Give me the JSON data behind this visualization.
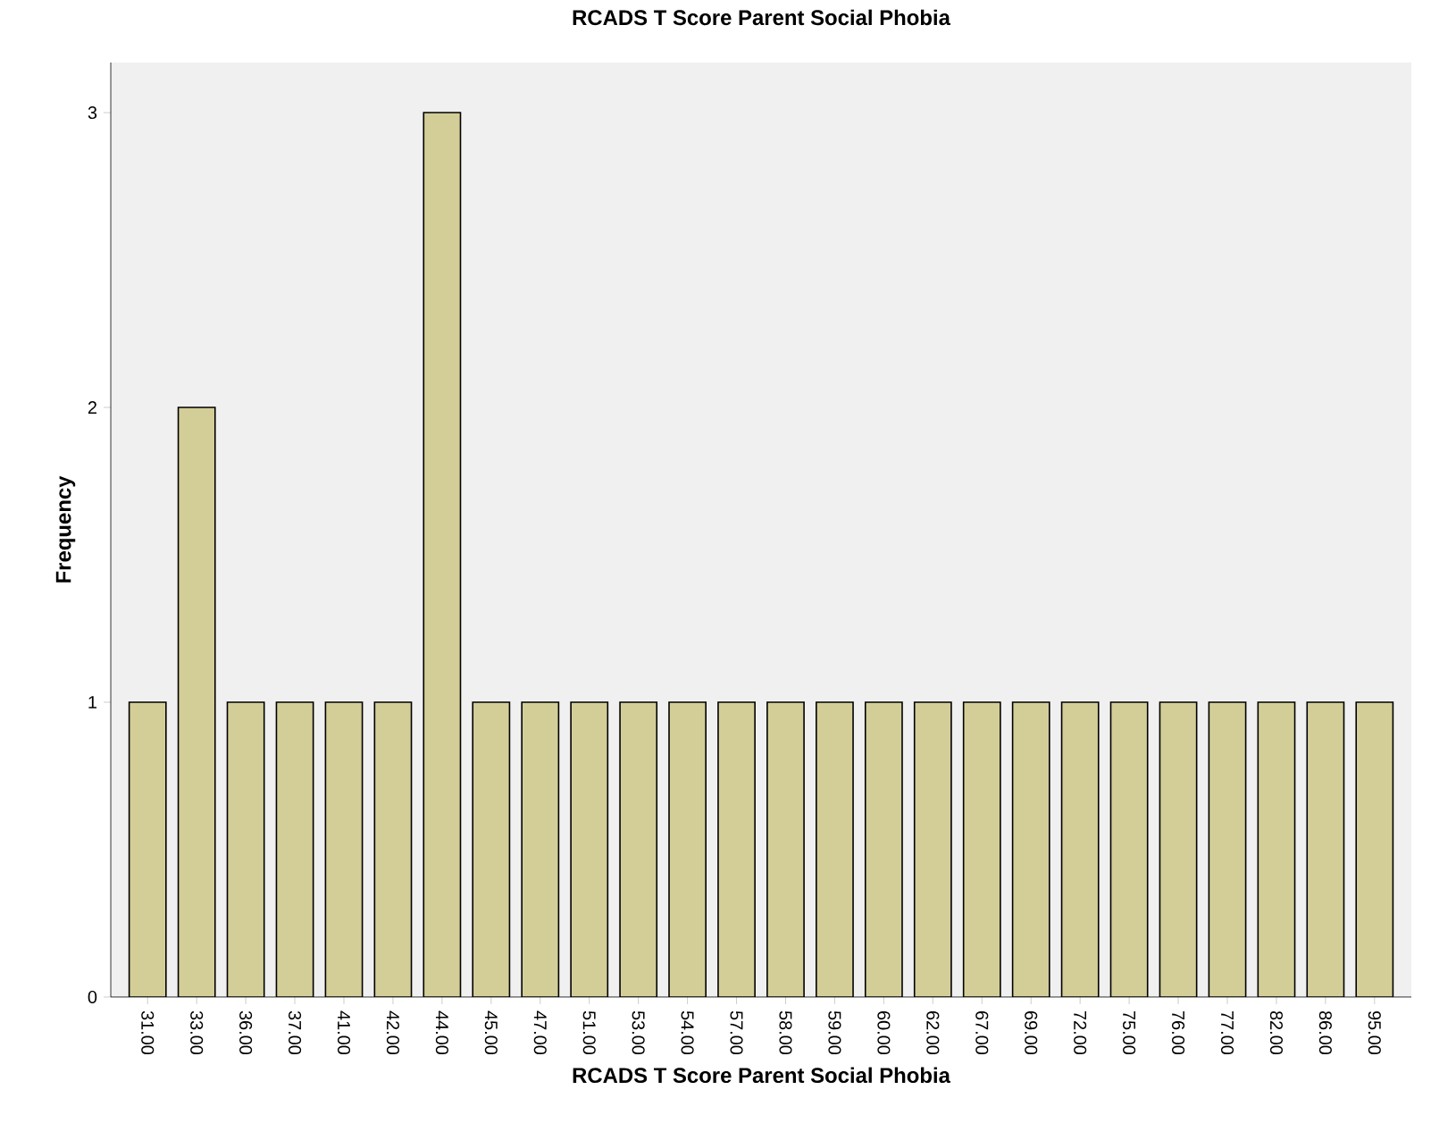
{
  "chart_data": {
    "type": "bar",
    "title": "RCADS T Score Parent Social Phobia",
    "xlabel": "RCADS T Score Parent Social Phobia",
    "ylabel": "Frequency",
    "categories": [
      "31.00",
      "33.00",
      "36.00",
      "37.00",
      "41.00",
      "42.00",
      "44.00",
      "45.00",
      "47.00",
      "51.00",
      "53.00",
      "54.00",
      "57.00",
      "58.00",
      "59.00",
      "60.00",
      "62.00",
      "67.00",
      "69.00",
      "72.00",
      "75.00",
      "76.00",
      "77.00",
      "82.00",
      "86.00",
      "95.00"
    ],
    "values": [
      1,
      2,
      1,
      1,
      1,
      1,
      3,
      1,
      1,
      1,
      1,
      1,
      1,
      1,
      1,
      1,
      1,
      1,
      1,
      1,
      1,
      1,
      1,
      1,
      1,
      1
    ],
    "color": "#d3ce98",
    "ylim": [
      0,
      3.17
    ],
    "yticks": [
      0,
      1,
      2,
      3
    ]
  }
}
